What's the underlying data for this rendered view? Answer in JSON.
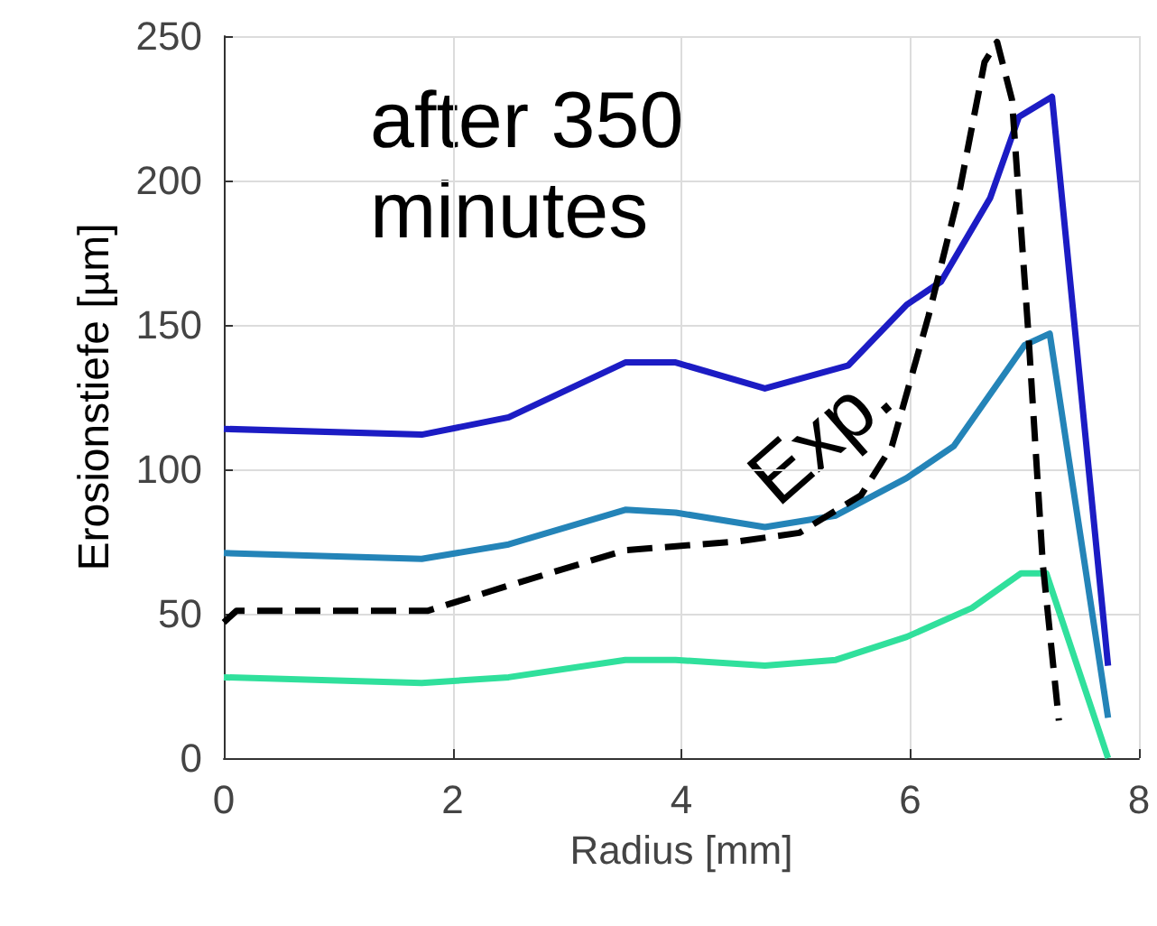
{
  "chart_data": {
    "type": "line",
    "xlabel": "Radius [mm]",
    "ylabel": "Erosionstiefe [µm]",
    "annotations": [
      "after 350\nminutes"
    ],
    "xlim": [
      0,
      8
    ],
    "xticks": [
      0,
      2,
      4,
      6,
      8
    ],
    "ylim": [
      0,
      250
    ],
    "yticks": [
      0,
      50,
      100,
      150,
      200,
      250
    ],
    "grid": true,
    "legend": false,
    "marker": "none",
    "series": [
      {
        "color": "#1c1cc4",
        "x": [
          0,
          1.73,
          2.49,
          3.51,
          3.95,
          4.73,
          5.46,
          5.97,
          6.27,
          6.7,
          6.95,
          7.24,
          7.73
        ],
        "values": [
          114,
          112,
          118,
          137,
          137,
          128,
          136,
          157,
          165,
          194,
          222,
          229,
          32
        ]
      },
      {
        "color": "#2484b8",
        "x": [
          0,
          1.73,
          2.49,
          3.51,
          3.95,
          4.73,
          5.35,
          5.97,
          6.38,
          7.0,
          7.22,
          7.73
        ],
        "values": [
          71,
          69,
          74,
          86,
          85,
          80,
          84,
          97,
          108,
          143,
          147,
          14
        ]
      },
      {
        "color": "#30e09c",
        "x": [
          0,
          1.73,
          2.49,
          3.51,
          3.95,
          4.73,
          5.35,
          5.97,
          6.54,
          6.97,
          7.19,
          7.73
        ],
        "values": [
          28,
          26,
          28,
          34,
          34,
          32,
          34,
          42,
          52,
          64,
          64,
          0
        ]
      },
      {
        "name": "Exp.",
        "color": "#000000",
        "line_style": "dashed",
        "x": [
          0,
          0.11,
          1.78,
          2.43,
          3.51,
          4.49,
          5.03,
          5.57,
          5.84,
          6.16,
          6.43,
          6.65,
          6.76,
          6.89,
          7.03,
          7.16,
          7.3
        ],
        "values": [
          47,
          51,
          51,
          59,
          72,
          75,
          78,
          91,
          108,
          153,
          196,
          241,
          248,
          228,
          149,
          67,
          13
        ]
      }
    ]
  }
}
